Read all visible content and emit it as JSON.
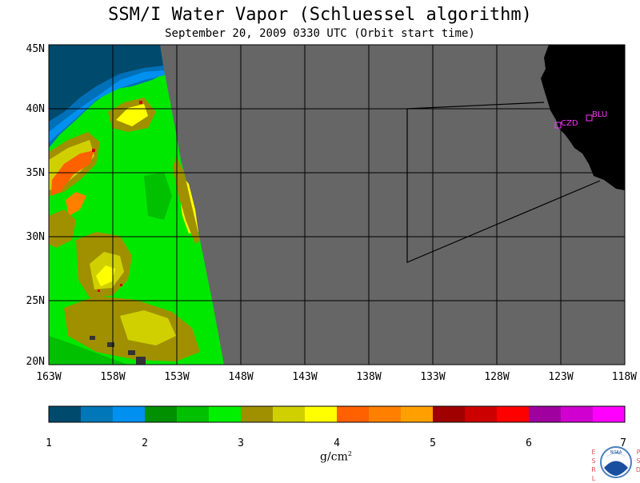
{
  "title": "SSM/I Water Vapor (Schluessel algorithm)",
  "subtitle": "September 20, 2009  0330 UTC  (Orbit start time)",
  "map": {
    "lat_labels": [
      "45N",
      "40N",
      "35N",
      "30N",
      "25N",
      "20N"
    ],
    "lon_labels": [
      "163W",
      "158W",
      "153W",
      "148W",
      "143W",
      "138W",
      "133W",
      "128W",
      "123W",
      "118W"
    ],
    "stations": [
      {
        "code": "CZD",
        "lat": 38.6,
        "lon": -123.0
      },
      {
        "code": "BLU",
        "lat": 39.3,
        "lon": -120.8
      }
    ],
    "colors": {
      "no_data": "#666666",
      "land": "#000000",
      "grid": "#000000",
      "station": "#ff33ff"
    }
  },
  "colorbar": {
    "ticks": [
      "1",
      "2",
      "3",
      "4",
      "5",
      "6",
      "7"
    ],
    "colors": [
      "#004a6e",
      "#0078b8",
      "#0090f0",
      "#009000",
      "#00c000",
      "#00f000",
      "#a09000",
      "#d0d000",
      "#ffff00",
      "#ff6000",
      "#ff8000",
      "#ffa000",
      "#a00000",
      "#cc0000",
      "#ff0000",
      "#a000a0",
      "#d000d0",
      "#ff00ff"
    ],
    "units": "g/cm",
    "units_exp": "2"
  },
  "logo": {
    "text": "NOAA",
    "left_letters": "ESRL",
    "right_letters": "PSD"
  }
}
